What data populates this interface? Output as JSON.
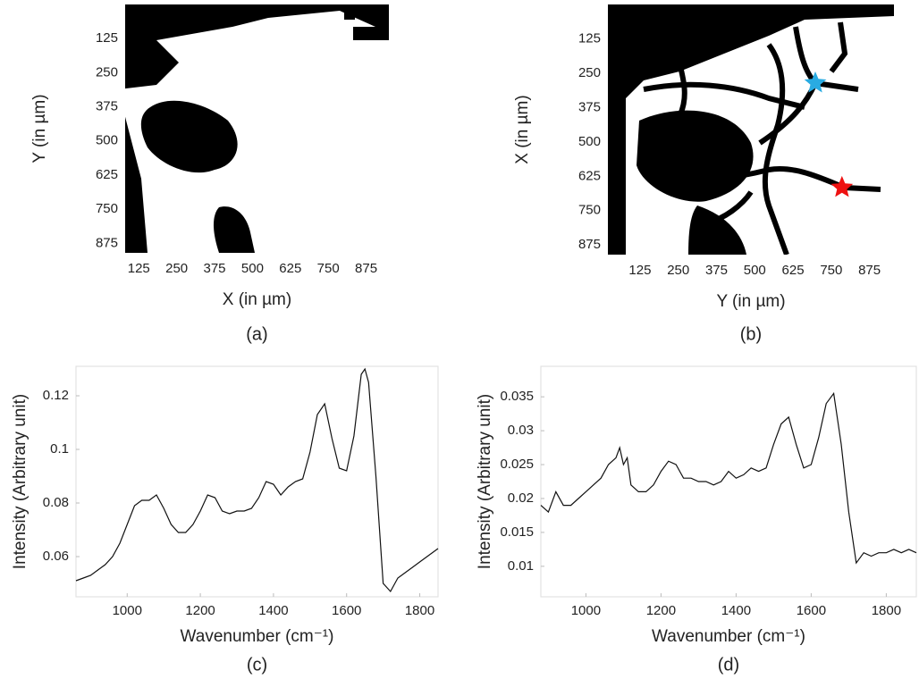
{
  "chart_data": [
    {
      "type": "image",
      "caption": "(a)",
      "xlabel": "X (in µm)",
      "ylabel": "Y (in µm)",
      "xlim": [
        80,
        950
      ],
      "ylim": [
        0,
        910
      ],
      "y_reversed": true,
      "xticks": [
        125,
        250,
        375,
        500,
        625,
        750,
        875
      ],
      "yticks": [
        125,
        250,
        375,
        500,
        625,
        750,
        875
      ]
    },
    {
      "type": "image",
      "caption": "(b)",
      "xlabel": "Y (in µm)",
      "ylabel": "X (in µm)",
      "xlim": [
        20,
        955
      ],
      "ylim": [
        0,
        910
      ],
      "y_reversed": true,
      "xticks": [
        125,
        250,
        375,
        500,
        625,
        750,
        875
      ],
      "yticks": [
        125,
        250,
        375,
        500,
        625,
        750,
        875
      ],
      "markers": [
        {
          "x": 698,
          "y": 286,
          "color": "#29abe2"
        },
        {
          "x": 785,
          "y": 666,
          "color": "#ee1111"
        }
      ]
    },
    {
      "type": "line",
      "caption": "(c)",
      "xlabel": "Wavenumber (cm⁻¹)",
      "ylabel": "Intensity (Arbitrary unit)",
      "xlim": [
        860,
        1850
      ],
      "ylim": [
        0.045,
        0.131
      ],
      "xticks": [
        1000,
        1200,
        1400,
        1600,
        1800
      ],
      "yticks": [
        0.06,
        0.08,
        0.1,
        0.12
      ],
      "x": [
        860,
        880,
        900,
        920,
        940,
        960,
        980,
        1000,
        1020,
        1040,
        1060,
        1080,
        1100,
        1120,
        1140,
        1160,
        1180,
        1200,
        1220,
        1240,
        1260,
        1280,
        1300,
        1320,
        1340,
        1360,
        1380,
        1400,
        1420,
        1440,
        1460,
        1480,
        1500,
        1520,
        1540,
        1560,
        1580,
        1600,
        1620,
        1640,
        1650,
        1660,
        1680,
        1700,
        1720,
        1740,
        1760,
        1780,
        1800,
        1820,
        1850
      ],
      "series": [
        {
          "color": "#111111",
          "values": [
            0.051,
            0.052,
            0.053,
            0.055,
            0.057,
            0.06,
            0.065,
            0.072,
            0.079,
            0.081,
            0.081,
            0.083,
            0.078,
            0.072,
            0.069,
            0.069,
            0.072,
            0.077,
            0.083,
            0.082,
            0.077,
            0.076,
            0.077,
            0.077,
            0.078,
            0.082,
            0.088,
            0.087,
            0.083,
            0.086,
            0.088,
            0.089,
            0.099,
            0.113,
            0.117,
            0.104,
            0.093,
            0.092,
            0.105,
            0.128,
            0.13,
            0.125,
            0.09,
            0.05,
            0.047,
            0.052,
            0.054,
            0.056,
            0.058,
            0.06,
            0.063
          ]
        }
      ]
    },
    {
      "type": "line",
      "caption": "(d)",
      "xlabel": "Wavenumber (cm⁻¹)",
      "ylabel": "Intensity (Arbitrary unit)",
      "xlim": [
        880,
        1880
      ],
      "ylim": [
        0.0055,
        0.0395
      ],
      "xticks": [
        1000,
        1200,
        1400,
        1600,
        1800
      ],
      "yticks": [
        0.01,
        0.015,
        0.02,
        0.025,
        0.03,
        0.035
      ],
      "x": [
        880,
        900,
        920,
        940,
        960,
        980,
        1000,
        1020,
        1040,
        1060,
        1080,
        1090,
        1100,
        1110,
        1120,
        1140,
        1160,
        1180,
        1200,
        1220,
        1240,
        1260,
        1280,
        1300,
        1320,
        1340,
        1360,
        1380,
        1400,
        1420,
        1440,
        1460,
        1480,
        1500,
        1520,
        1540,
        1560,
        1580,
        1600,
        1620,
        1640,
        1660,
        1680,
        1700,
        1720,
        1740,
        1760,
        1780,
        1800,
        1820,
        1840,
        1860,
        1880
      ],
      "series": [
        {
          "color": "#111111",
          "values": [
            0.019,
            0.018,
            0.021,
            0.019,
            0.019,
            0.02,
            0.021,
            0.022,
            0.023,
            0.025,
            0.026,
            0.0275,
            0.025,
            0.026,
            0.022,
            0.021,
            0.021,
            0.022,
            0.024,
            0.0255,
            0.025,
            0.023,
            0.023,
            0.0225,
            0.0225,
            0.022,
            0.0225,
            0.024,
            0.023,
            0.0235,
            0.0245,
            0.024,
            0.0245,
            0.028,
            0.031,
            0.032,
            0.028,
            0.0245,
            0.025,
            0.029,
            0.034,
            0.0355,
            0.028,
            0.018,
            0.0105,
            0.012,
            0.0115,
            0.012,
            0.012,
            0.0125,
            0.012,
            0.0125,
            0.012
          ]
        }
      ]
    }
  ]
}
